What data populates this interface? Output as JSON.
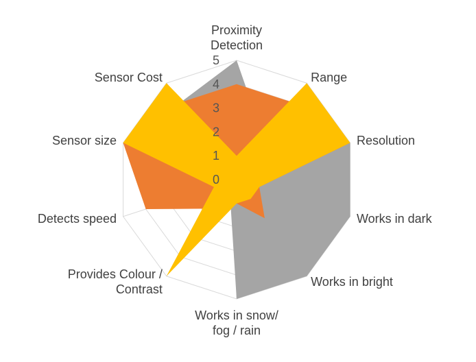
{
  "chart_data": {
    "type": "radar",
    "categories": [
      [
        "Proximity",
        "Detection"
      ],
      [
        "Range"
      ],
      [
        "Resolution"
      ],
      [
        "Works in dark"
      ],
      [
        "Works in bright"
      ],
      [
        "Works in snow/",
        "fog / rain"
      ],
      [
        "Provides Colour /",
        "Contrast"
      ],
      [
        "Detects speed"
      ],
      [
        "Sensor size"
      ],
      [
        "Sensor Cost"
      ]
    ],
    "rlim": [
      0,
      5
    ],
    "ticks": [
      "0",
      "1",
      "2",
      "3",
      "4",
      "5"
    ],
    "grid": true,
    "legend": "none",
    "series": [
      {
        "color": "#A5A5A5",
        "values": [
          5,
          2,
          5,
          5,
          5,
          5,
          0.5,
          1,
          2,
          4
        ]
      },
      {
        "color": "#ED7D31",
        "values": [
          4,
          4,
          5,
          1,
          2,
          1,
          1.5,
          4,
          5,
          4
        ]
      },
      {
        "color": "#FFC000",
        "values": [
          1,
          5,
          5,
          1,
          1,
          1,
          5,
          1,
          5,
          5
        ]
      }
    ]
  }
}
